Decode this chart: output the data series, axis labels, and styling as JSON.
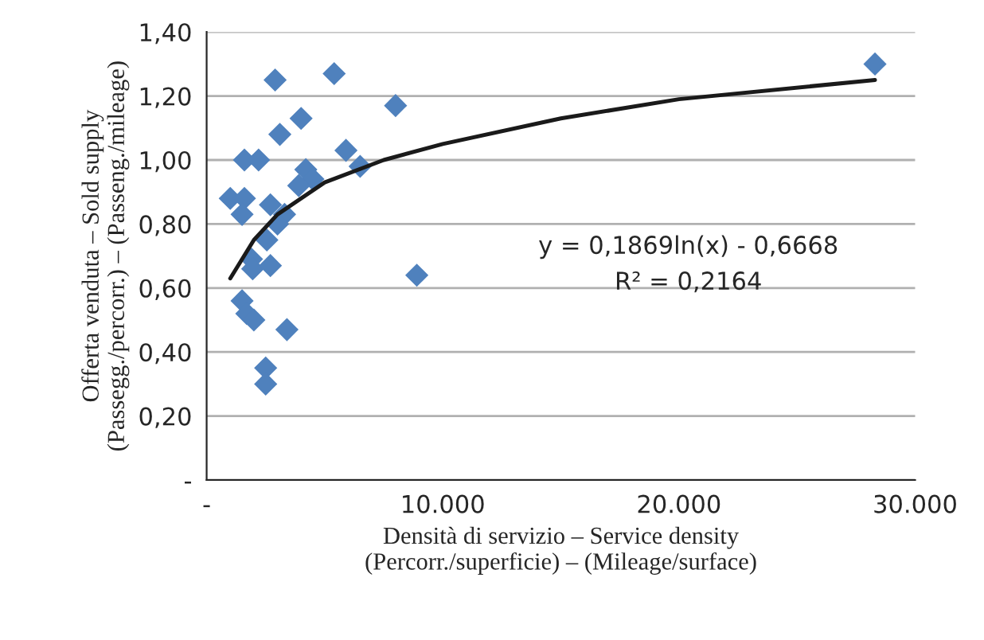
{
  "chart_data": {
    "type": "scatter",
    "xlabel": "Densità di servizio – Service density\n(Percorr./superficie) – (Mileage/surface)",
    "ylabel": "Offerta venduta – Sold supply\n(Passegg./percorr.) – (Passeng./mileage)",
    "series": [
      {
        "color": "#4f81bd",
        "marker": "diamond",
        "x": [
          1000,
          1600,
          2200,
          1600,
          1500,
          2700,
          2550,
          1900,
          1950,
          2700,
          1500,
          1700,
          2000,
          3400,
          2500,
          2500,
          2900,
          3100,
          4000,
          5400,
          8000,
          5900,
          6500,
          4200,
          4500,
          3900,
          3300,
          3000,
          8900,
          28300
        ],
        "values": [
          0.88,
          1.0,
          1.0,
          0.88,
          0.83,
          0.86,
          0.75,
          0.69,
          0.66,
          0.67,
          0.56,
          0.52,
          0.5,
          0.47,
          0.35,
          0.3,
          1.25,
          1.08,
          1.13,
          1.27,
          1.17,
          1.03,
          0.98,
          0.97,
          0.94,
          0.92,
          0.83,
          0.8,
          0.64,
          1.3
        ]
      },
      {
        "type": "line",
        "color": "#1a1a1a",
        "x": [
          1000,
          2000,
          3000,
          5000,
          7500,
          10000,
          15000,
          20000,
          28300
        ],
        "values": [
          0.63,
          0.75,
          0.83,
          0.93,
          1.0,
          1.05,
          1.13,
          1.19,
          1.25
        ]
      }
    ],
    "annotations": [
      "y = 0,1869ln(x) - 0,6668",
      "R² = 0,2164"
    ],
    "xlim": [
      0,
      30000
    ],
    "xticks": [
      {
        "value": 0,
        "label": "-"
      },
      {
        "value": 10000,
        "label": "10.000"
      },
      {
        "value": 20000,
        "label": "20.000"
      },
      {
        "value": 30000,
        "label": "30.000"
      }
    ],
    "ylim": [
      0,
      1.4
    ],
    "yticks": [
      {
        "value": 0,
        "label": "-"
      },
      {
        "value": 0.2,
        "label": "0,20"
      },
      {
        "value": 0.4,
        "label": "0,40"
      },
      {
        "value": 0.6,
        "label": "0,60"
      },
      {
        "value": 0.8,
        "label": "0,80"
      },
      {
        "value": 1.0,
        "label": "1,00"
      },
      {
        "value": 1.2,
        "label": "1,20"
      },
      {
        "value": 1.4,
        "label": "1,40"
      }
    ],
    "grid": "y",
    "legend": false
  }
}
